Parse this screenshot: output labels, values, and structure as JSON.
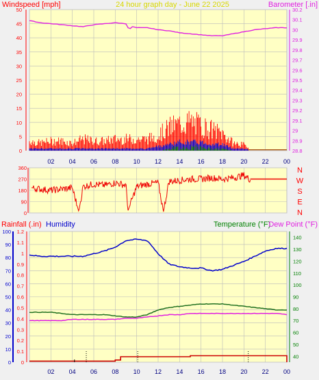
{
  "header": {
    "left_label": "Windspeed [mph]",
    "title": "24 hour graph day - June 22 2025",
    "right_label": "Barometer [.in]"
  },
  "colors": {
    "plot_bg": "#ffffc4",
    "frame": "#c8c8c8",
    "grid": "#bbbbbb",
    "wind": "#ff0000",
    "gust": "#ff0000",
    "wind_avg": "#0000cc",
    "wind_low": "#008000",
    "baro": "#e020e0",
    "dir": "#ee0000",
    "rain": "#cc0000",
    "humidity": "#0000cc",
    "temperature": "#207020",
    "dewpoint": "#e020e0",
    "title_color": "#d8d800",
    "left_axis_color": "#ff0000",
    "right_axis_color": "#e020e0",
    "humidity_axis_color": "#0000cc",
    "temp_axis_color": "#008000"
  },
  "x_ticks": [
    "02",
    "04",
    "06",
    "08",
    "10",
    "12",
    "14",
    "16",
    "18",
    "20",
    "22",
    "00"
  ],
  "wind_ticks": [
    "0",
    "5",
    "10",
    "15",
    "20",
    "25",
    "30",
    "35",
    "40",
    "45",
    "50"
  ],
  "baro_ticks": [
    "28.8",
    "28.9",
    "29",
    "29.1",
    "29.2",
    "29.3",
    "29.4",
    "29.5",
    "29.6",
    "29.7",
    "29.8",
    "29.9",
    "30",
    "30.1",
    "30.2"
  ],
  "dir_ticks": [
    "0",
    "90",
    "180",
    "270",
    "360"
  ],
  "dir_letters": [
    "N",
    "W",
    "S",
    "E",
    "N"
  ],
  "bottom_labels": {
    "rain": "Rainfall (.in)",
    "humidity": "Humidity",
    "temperature": "Temperature (°F)",
    "dewpoint": "Dew Point (°F)"
  },
  "humidity_ticks": [
    "0",
    "10",
    "20",
    "30",
    "40",
    "50",
    "60",
    "70",
    "80",
    "90",
    "100"
  ],
  "rain_ticks": [
    "0",
    "0.1",
    "0.2",
    "0.3",
    "0.4",
    "0.5",
    "0.6",
    "0.7",
    "0.8",
    "0.9",
    "1",
    "1.1",
    "1.2"
  ],
  "temp_ticks": [
    "40",
    "50",
    "60",
    "70",
    "80",
    "90",
    "100",
    "110",
    "120",
    "130",
    "140"
  ],
  "chart_data": [
    {
      "type": "line",
      "title": "24 hour graph day - June 22 2025",
      "xlabel": "",
      "ylabel": "Windspeed [mph]",
      "y2label": "Barometer [.in]",
      "x_unit": "hour",
      "xlim": [
        0,
        24
      ],
      "ylim": [
        0,
        50
      ],
      "y2lim": [
        28.8,
        30.2
      ],
      "grid": true,
      "series": [
        {
          "name": "Barometer [.in]",
          "axis": "right",
          "x": [
            0,
            1,
            2,
            3,
            4,
            5,
            6,
            7,
            8,
            9,
            9.3,
            9.6,
            10,
            11,
            12,
            13,
            14,
            15,
            16,
            17,
            18,
            19,
            20,
            21,
            22,
            23,
            24
          ],
          "values": [
            30.09,
            30.07,
            30.06,
            30.05,
            30.04,
            30.03,
            30.05,
            30.06,
            30.07,
            30.06,
            30.0,
            30.03,
            30.02,
            30.02,
            30.0,
            29.99,
            29.97,
            29.96,
            29.95,
            29.94,
            29.94,
            29.96,
            29.98,
            30.0,
            30.01,
            30.02,
            30.02
          ]
        },
        {
          "role": "gust_peak",
          "color": "red",
          "x": [
            0,
            1,
            2,
            3,
            4,
            5,
            6,
            7,
            8,
            9,
            10,
            11,
            12,
            13,
            14,
            15,
            16,
            17,
            18,
            19,
            20,
            21,
            22,
            23,
            24
          ],
          "values": [
            5,
            4,
            5,
            5,
            4,
            6,
            5,
            5,
            6,
            6,
            6,
            6,
            8,
            12,
            14,
            15,
            13,
            11,
            9,
            4,
            3,
            0,
            0,
            0,
            0
          ]
        },
        {
          "role": "average",
          "color": "blue",
          "x": [
            0,
            1,
            2,
            3,
            4,
            5,
            6,
            7,
            8,
            9,
            10,
            11,
            12,
            13,
            14,
            15,
            16,
            17,
            18,
            19,
            20,
            21,
            22,
            23,
            24
          ],
          "values": [
            1,
            1,
            1,
            1,
            1,
            1,
            1,
            1,
            1,
            1,
            1,
            1,
            2,
            3,
            4,
            4,
            4,
            3,
            3,
            1,
            1,
            0,
            0,
            0,
            0
          ]
        },
        {
          "role": "low",
          "color": "green",
          "x": [
            0,
            1,
            2,
            3,
            4,
            5,
            6,
            7,
            8,
            9,
            10,
            11,
            12,
            13,
            14,
            15,
            16,
            17,
            18,
            19,
            20,
            21,
            22,
            23,
            24
          ],
          "values": [
            0,
            0,
            0,
            0,
            0,
            0,
            0,
            0,
            0,
            0,
            0,
            0,
            0,
            1,
            2,
            2,
            2,
            1,
            1,
            0,
            0,
            0,
            0,
            0,
            0
          ]
        }
      ]
    },
    {
      "type": "line",
      "title": "",
      "xlabel": "",
      "ylabel": "",
      "x_unit": "hour",
      "xlim": [
        0,
        24
      ],
      "ylim": [
        0,
        360
      ],
      "grid": true,
      "series": [
        {
          "role": "direction",
          "color": "red",
          "x": [
            0,
            1,
            2,
            3,
            4,
            4.6,
            5,
            6,
            7,
            8,
            9,
            9.2,
            10,
            11,
            12,
            12.5,
            13,
            14,
            15,
            16,
            17,
            18,
            19,
            20,
            20.5,
            21,
            22,
            23,
            24
          ],
          "values": [
            200,
            190,
            180,
            190,
            200,
            10,
            210,
            230,
            220,
            240,
            220,
            20,
            210,
            230,
            240,
            10,
            250,
            260,
            270,
            270,
            280,
            270,
            280,
            300,
            270,
            270,
            270,
            270,
            270
          ]
        }
      ]
    },
    {
      "type": "line",
      "title": "",
      "xlabel": "",
      "ylabel": "Rainfall (.in)",
      "y2label": "Temperature (°F)",
      "x_unit": "hour",
      "xlim": [
        0,
        24
      ],
      "rain_lim": [
        0,
        1.2
      ],
      "humidity_lim": [
        0,
        100
      ],
      "y2lim": [
        35,
        145
      ],
      "grid": true,
      "series": [
        {
          "name": "Humidity",
          "axis": "humidity",
          "x": [
            0,
            1,
            2,
            3,
            4,
            5,
            6,
            7,
            8,
            9,
            10,
            11,
            12,
            13,
            14,
            15,
            16,
            17,
            18,
            19,
            20,
            21,
            22,
            23,
            24
          ],
          "values": [
            82,
            81,
            81,
            81,
            81,
            81,
            83,
            85,
            88,
            93,
            94,
            93,
            83,
            75,
            73,
            72,
            72,
            70,
            71,
            74,
            77,
            81,
            85,
            87,
            87
          ]
        },
        {
          "name": "Temperature (°F)",
          "axis": "right",
          "x": [
            0,
            1,
            2,
            3,
            4,
            5,
            6,
            7,
            8,
            9,
            10,
            11,
            12,
            13,
            14,
            15,
            16,
            17,
            18,
            19,
            20,
            21,
            22,
            23,
            24
          ],
          "values": [
            77,
            77,
            77,
            76,
            75,
            75,
            75,
            75,
            74,
            73,
            73,
            75,
            79,
            81,
            82,
            83,
            84,
            84,
            84,
            83,
            82,
            81,
            80,
            79,
            79
          ]
        },
        {
          "name": "Dew Point (°F)",
          "axis": "right",
          "x": [
            0,
            1,
            2,
            3,
            4,
            5,
            6,
            7,
            8,
            9,
            10,
            11,
            12,
            13,
            14,
            15,
            16,
            17,
            18,
            19,
            20,
            21,
            22,
            23,
            24
          ],
          "values": [
            70,
            70,
            70,
            70,
            71,
            71,
            71,
            71,
            71,
            72,
            72,
            73,
            74,
            75,
            75,
            76,
            76,
            76,
            76,
            76,
            76,
            76,
            76,
            76,
            75
          ]
        },
        {
          "name": "Rainfall (.in)",
          "axis": "left",
          "x": [
            0,
            5,
            7,
            8,
            8.5,
            9,
            10,
            14,
            15,
            20,
            22,
            24
          ],
          "values": [
            0.01,
            0.01,
            0.01,
            0.02,
            0.05,
            0.05,
            0.05,
            0.05,
            0.06,
            0.06,
            0.06,
            0.06
          ]
        }
      ]
    }
  ]
}
